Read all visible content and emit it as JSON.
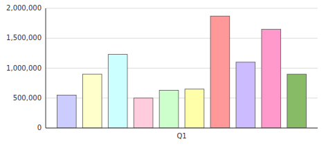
{
  "chart_data": {
    "type": "bar",
    "categories": [
      "Q1"
    ],
    "series": [
      {
        "color": "#ccccff",
        "values": [
          550000
        ]
      },
      {
        "color": "#ffffcc",
        "values": [
          900000
        ]
      },
      {
        "color": "#ccffff",
        "values": [
          1230000
        ]
      },
      {
        "color": "#ffccdd",
        "values": [
          500000
        ]
      },
      {
        "color": "#ccffcc",
        "values": [
          630000
        ]
      },
      {
        "color": "#ffffaa",
        "values": [
          650000
        ]
      },
      {
        "color": "#ff9999",
        "values": [
          1870000
        ]
      },
      {
        "color": "#ccbbff",
        "values": [
          1100000
        ]
      },
      {
        "color": "#ff99cc",
        "values": [
          1650000
        ]
      },
      {
        "color": "#88bb66",
        "values": [
          900000
        ]
      }
    ],
    "ylim": [
      0,
      2000000
    ],
    "yticks": [
      0,
      {
        "value": 500000,
        "label": "500,000"
      },
      {
        "value": 1000000,
        "label": "1,000,000"
      },
      {
        "value": 1500000,
        "label": "1,500,000"
      },
      {
        "value": 2000000,
        "label": "2,000,000"
      }
    ],
    "grid": true
  }
}
